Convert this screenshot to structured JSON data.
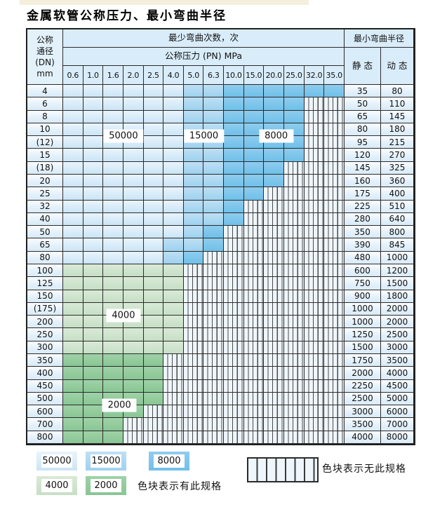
{
  "title": "金属软管公称压力、最小弯曲半径",
  "chart_data": {
    "type": "heatmap",
    "title": "金属软管公称压力、最小弯曲半径",
    "header": {
      "dn_lines": [
        "公称",
        "通径",
        "(DN)",
        "mm"
      ],
      "cycles_title": "最少弯曲次数，次",
      "pressure_title": "公称压力 (PN) MPa",
      "pressures": [
        "0.6",
        "1.0",
        "1.6",
        "2.0",
        "2.5",
        "4.0",
        "5.0",
        "6.3",
        "10.0",
        "15.0",
        "20.0",
        "25.0",
        "32.0",
        "35.0"
      ],
      "radius_title": "最小弯曲半径",
      "radius_static": "静 态",
      "radius_dynamic": "动 态"
    },
    "cell_class_meaning": {
      "L": "50000次弯曲 (浅蓝)",
      "M": "15000次弯曲 (中蓝)",
      "D": "8000次弯曲 (深蓝)",
      "G": "4000次弯曲 (浅绿)",
      "N": "2000次弯曲 (深绿)",
      "H": "无此规格 (竖线阴影)"
    },
    "rows": [
      {
        "dn": "4",
        "cells": "LLLLLLMMDDDDDD",
        "static": "35",
        "dynamic": "80"
      },
      {
        "dn": "6",
        "cells": "LLLLLLMMDDDDHH",
        "static": "50",
        "dynamic": "110"
      },
      {
        "dn": "8",
        "cells": "LLLLLLMMDDDDHH",
        "static": "65",
        "dynamic": "145"
      },
      {
        "dn": "10",
        "cells": "LLLLLLMMDDDDHH",
        "static": "80",
        "dynamic": "180"
      },
      {
        "dn": "(12)",
        "cells": "LLLLLLMMDDDDHH",
        "static": "95",
        "dynamic": "215"
      },
      {
        "dn": "15",
        "cells": "LLLLLLMMDDDDHH",
        "static": "120",
        "dynamic": "270"
      },
      {
        "dn": "(18)",
        "cells": "LLLLLLMMDDDHHH",
        "static": "145",
        "dynamic": "325"
      },
      {
        "dn": "20",
        "cells": "LLLLLLMMDDDHHH",
        "static": "160",
        "dynamic": "360"
      },
      {
        "dn": "25",
        "cells": "LLLLLLMMDDHHHH",
        "static": "175",
        "dynamic": "400"
      },
      {
        "dn": "32",
        "cells": "LLLLLLMMDHHHHH",
        "static": "225",
        "dynamic": "510"
      },
      {
        "dn": "40",
        "cells": "LLLLLLMMDHHHHH",
        "static": "280",
        "dynamic": "640"
      },
      {
        "dn": "50",
        "cells": "LLLLLLMDHHHHHH",
        "static": "350",
        "dynamic": "800"
      },
      {
        "dn": "65",
        "cells": "LLLLLMMDHHHHHH",
        "static": "390",
        "dynamic": "845"
      },
      {
        "dn": "80",
        "cells": "LLLLLMDHHHHHHH",
        "static": "480",
        "dynamic": "1000"
      },
      {
        "dn": "100",
        "cells": "GGGGGGHHHHHHHH",
        "static": "600",
        "dynamic": "1200"
      },
      {
        "dn": "125",
        "cells": "GGGGGGHHHHHHHH",
        "static": "750",
        "dynamic": "1500"
      },
      {
        "dn": "150",
        "cells": "GGGGGGHHHHHHHH",
        "static": "900",
        "dynamic": "1800"
      },
      {
        "dn": "(175)",
        "cells": "GGGGGGHHHHHHHH",
        "static": "1000",
        "dynamic": "2000"
      },
      {
        "dn": "200",
        "cells": "GGGGGGHHHHHHHH",
        "static": "1000",
        "dynamic": "2000"
      },
      {
        "dn": "250",
        "cells": "GGGGGGHHHHHHHH",
        "static": "1250",
        "dynamic": "2500"
      },
      {
        "dn": "300",
        "cells": "GGGGGGHHHHHHHH",
        "static": "1500",
        "dynamic": "3000"
      },
      {
        "dn": "350",
        "cells": "NNNNNHHHHHHHHH",
        "static": "1750",
        "dynamic": "3500"
      },
      {
        "dn": "400",
        "cells": "NNNNNHHHHHHHHH",
        "static": "2000",
        "dynamic": "4000"
      },
      {
        "dn": "450",
        "cells": "NNNNNHHHHHHHHH",
        "static": "2250",
        "dynamic": "4500"
      },
      {
        "dn": "500",
        "cells": "NNNNNHHHHHHHHH",
        "static": "2500",
        "dynamic": "5000"
      },
      {
        "dn": "600",
        "cells": "NNNNHHHHHHHHHH",
        "static": "3000",
        "dynamic": "6000"
      },
      {
        "dn": "700",
        "cells": "NNNHHHHHHHHHHH",
        "static": "3500",
        "dynamic": "7000"
      },
      {
        "dn": "800",
        "cells": "NNNHHHHHHHHHHH",
        "static": "4000",
        "dynamic": "8000"
      }
    ],
    "cell_labels": [
      {
        "text": "50000",
        "col": 3.0,
        "row": 4.0
      },
      {
        "text": "15000",
        "col": 7.0,
        "row": 4.0
      },
      {
        "text": "8000",
        "col": 10.6,
        "row": 4.0
      },
      {
        "text": "4000",
        "col": 3.0,
        "row": 18.0
      },
      {
        "text": "2000",
        "col": 2.8,
        "row": 25.0
      }
    ]
  },
  "legend": {
    "has_spec_items": [
      {
        "label": "50000",
        "class": "cl"
      },
      {
        "label": "15000",
        "class": "cm"
      },
      {
        "label": "8000",
        "class": "cd"
      },
      {
        "label": "4000",
        "class": "cg"
      },
      {
        "label": "2000",
        "class": "cn"
      }
    ],
    "has_spec_text": "色块表示有此规格",
    "no_spec_text": "色块表示无此规格"
  },
  "colors": {
    "blue_50000": "#cbe5f6",
    "blue_15000": "#9dd2ef",
    "blue_8000": "#6fc0e9",
    "green_4000": "#c6dfc5",
    "green_2000": "#89c694",
    "grid_line": "#2b2b2b",
    "header_bg": "#d9ecf9"
  }
}
